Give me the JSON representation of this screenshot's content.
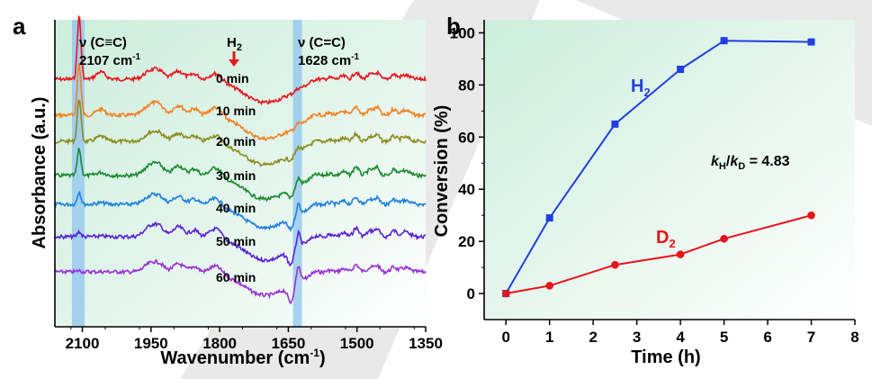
{
  "chart_data": [
    {
      "panel": "a",
      "type": "line",
      "xlabel": "Wavenumber (cm",
      "xlabel_sup": "-1",
      "xlabel_end": ")",
      "ylabel": "Absorbance (a.u.)",
      "xlim": [
        2160,
        1350
      ],
      "x_ticks": [
        "2100",
        "1950",
        "1800",
        "1650",
        "1500",
        "1350"
      ],
      "x_tick_values": [
        2100,
        1950,
        1800,
        1650,
        1500,
        1350
      ],
      "background_color": "#d8f0e2",
      "highlight_color": "#8fc4ef",
      "highlight_bands": [
        2107,
        1628
      ],
      "annotations": {
        "cc_triple": "ν (C≡C)",
        "cc_triple_value": "2107 cm",
        "cc_double": "ν (C=C)",
        "cc_double_value": "1628 cm",
        "unit_sup": "-1",
        "h2_label": "H",
        "h2_sub": "2",
        "arrow_color": "#e31a1c"
      },
      "series": [
        {
          "name": "0 min",
          "color": "#e8141c",
          "c2107": 1.0,
          "c1628": 0.05
        },
        {
          "name": "10 min",
          "color": "#f57f20",
          "c2107": 0.82,
          "c1628": 0.12
        },
        {
          "name": "20 min",
          "color": "#8b8b1a",
          "c2107": 0.68,
          "c1628": 0.25
        },
        {
          "name": "30 min",
          "color": "#198a2c",
          "c2107": 0.42,
          "c1628": 0.45
        },
        {
          "name": "40 min",
          "color": "#1e7fe0",
          "c2107": 0.2,
          "c1628": 0.65
        },
        {
          "name": "50 min",
          "color": "#5a22d6",
          "c2107": 0.08,
          "c1628": 0.85
        },
        {
          "name": "60 min",
          "color": "#9b30d8",
          "c2107": 0.02,
          "c1628": 1.0
        }
      ]
    },
    {
      "panel": "b",
      "type": "line",
      "xlabel": "Time (h)",
      "ylabel": "Conversion (%)",
      "xlim": [
        -0.5,
        8
      ],
      "ylim": [
        -10,
        105
      ],
      "x_ticks": [
        0,
        1,
        2,
        3,
        4,
        5,
        6,
        7,
        8
      ],
      "y_ticks": [
        0,
        20,
        40,
        60,
        80,
        100
      ],
      "background_color": "#d8f0e2",
      "series": [
        {
          "name": "H",
          "sub": "2",
          "color": "#1f3fe0",
          "marker": "square",
          "x": [
            0,
            1,
            2.5,
            4,
            5,
            7
          ],
          "y": [
            0,
            29,
            65,
            86,
            97,
            96.5
          ]
        },
        {
          "name": "D",
          "sub": "2",
          "color": "#e8141c",
          "marker": "circle",
          "x": [
            0,
            1,
            2.5,
            4,
            5,
            7
          ],
          "y": [
            0,
            3,
            11,
            15,
            21,
            30
          ]
        }
      ],
      "kie_text": {
        "k": "k",
        "h": "H",
        "slash": "/",
        "k2": "k",
        "d": "D",
        "value": " = 4.83"
      }
    }
  ]
}
